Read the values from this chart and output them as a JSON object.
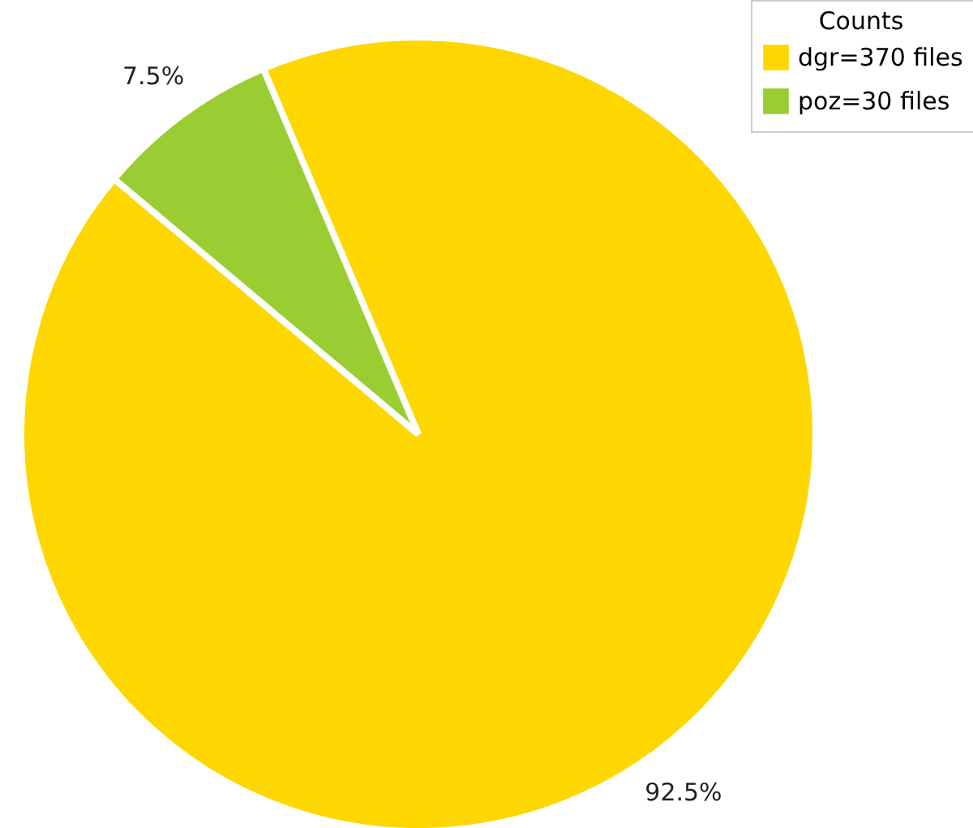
{
  "chart_data": {
    "type": "pie",
    "legend_title": "Counts",
    "legend": "top right",
    "categories": [
      "dgr=370 files",
      "poz=30 files"
    ],
    "values": [
      92.5,
      7.5
    ],
    "colors": [
      "#ffd700",
      "#9acd32"
    ],
    "value_labels": [
      "92.5%",
      "7.5%"
    ]
  }
}
